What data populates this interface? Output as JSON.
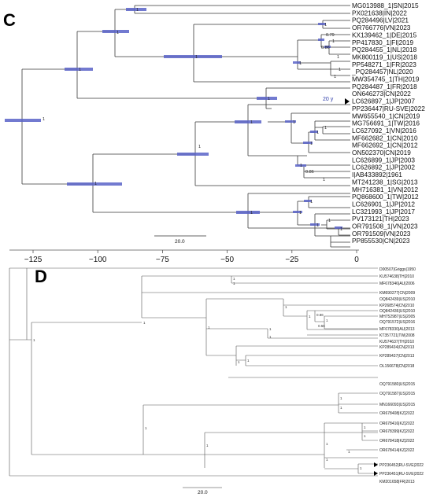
{
  "panel_c": {
    "letter": "C",
    "scale_label": "20.0",
    "age_annotation": "20 y",
    "axis_ticks": [
      "−125",
      "−100",
      "−75",
      "−50",
      "−25",
      "0"
    ],
    "taxa": [
      "MG013988_1|SN|2015",
      "PX021638|IN|2022",
      "PQ284496|LV|2021",
      "OR766776|VN|2023",
      "KX139462_1|DE|2015",
      "PP417830_1|FI|2019",
      "PQ284455_1|NL|2018",
      "MK800119_1|US|2018",
      "PP548271_1|FR|2023",
      "_PQ284457|NL|2020",
      "MW354745_1|TH|2019",
      "PQ284487_1|FR|2018",
      "ON646273|CN|2022",
      "LC626897_1|JP|2007",
      "PP236447|RU-SVE|2022",
      "MW655540_1|CN|2019",
      "MG756691_1|TW|2016",
      "LC627092_1|VN|2016",
      "MF662682_1|CN|2010",
      "MF662692_1|CN|2012",
      "ON502370|CN|2019",
      "LC626899_1|JP|2003",
      "LC626892_1|JP|2002",
      "I|AB433892|1961",
      "MT241238_1|SG|2013",
      "MH716381_1|VN|2012",
      "PQ868600_1|TW|2012",
      "LC626901_1|JP|2012",
      "LC321993_1|JP|2017",
      "PV173121|TH|2023",
      "OR791508_1|VN|2023",
      "OR791509|VN|2023",
      "PP855530|CN|2023"
    ],
    "supports": [
      "1",
      "1",
      "1",
      "0.79",
      "1",
      "0.86",
      "1",
      "1",
      "1",
      "1",
      "1",
      "1",
      "1",
      "1",
      "1",
      "1",
      "1",
      "1",
      "1",
      "0.86",
      "1",
      "1",
      "1",
      "1",
      "1",
      "1",
      "1",
      "1",
      "1",
      "1"
    ]
  },
  "panel_d": {
    "letter": "D",
    "scale_label": "20.0",
    "taxa": [
      "D00507|Griggs|1950",
      "KU574638|TH|2010",
      "MF678346|AU|2006",
      "KM690277|CN|2009",
      "OQ842439|US|2010",
      "KP268574|CN|2010",
      "OQ842436|US|2010",
      "MH752987|US|2005",
      "OQ791572|US|2016",
      "MF678330|AU|2013",
      "KT357721|TW|2008",
      "KU574637|TH|2010",
      "KP289434|CN|2013",
      "KP289437|CN|2013",
      "OL156678|CN|2018",
      "OQ791580|US|2015",
      "OQ791587|US|2015",
      "MN166093|US|2015",
      "OR678408|KZ|2022",
      "OR678416|KZ|2022",
      "OR678399|KZ|2022",
      "OR678418|KZ|2022",
      "OR678414|KZ|2022",
      "PP236452|RU-SVE|2022",
      "PP236451|RU-SVE|2022",
      "KM201658|FR|2013"
    ],
    "supports": [
      "1",
      "1",
      "1",
      "1",
      "1",
      "1",
      "0.86",
      "1",
      "0.56",
      "1",
      "1",
      "1",
      "1",
      "1",
      "1",
      "1",
      "1",
      "1",
      "1",
      "1",
      "1",
      "1",
      "1",
      "1"
    ]
  },
  "colors": {
    "hpd_bar": "#5a63c8",
    "branch": "#3a3a3a"
  }
}
